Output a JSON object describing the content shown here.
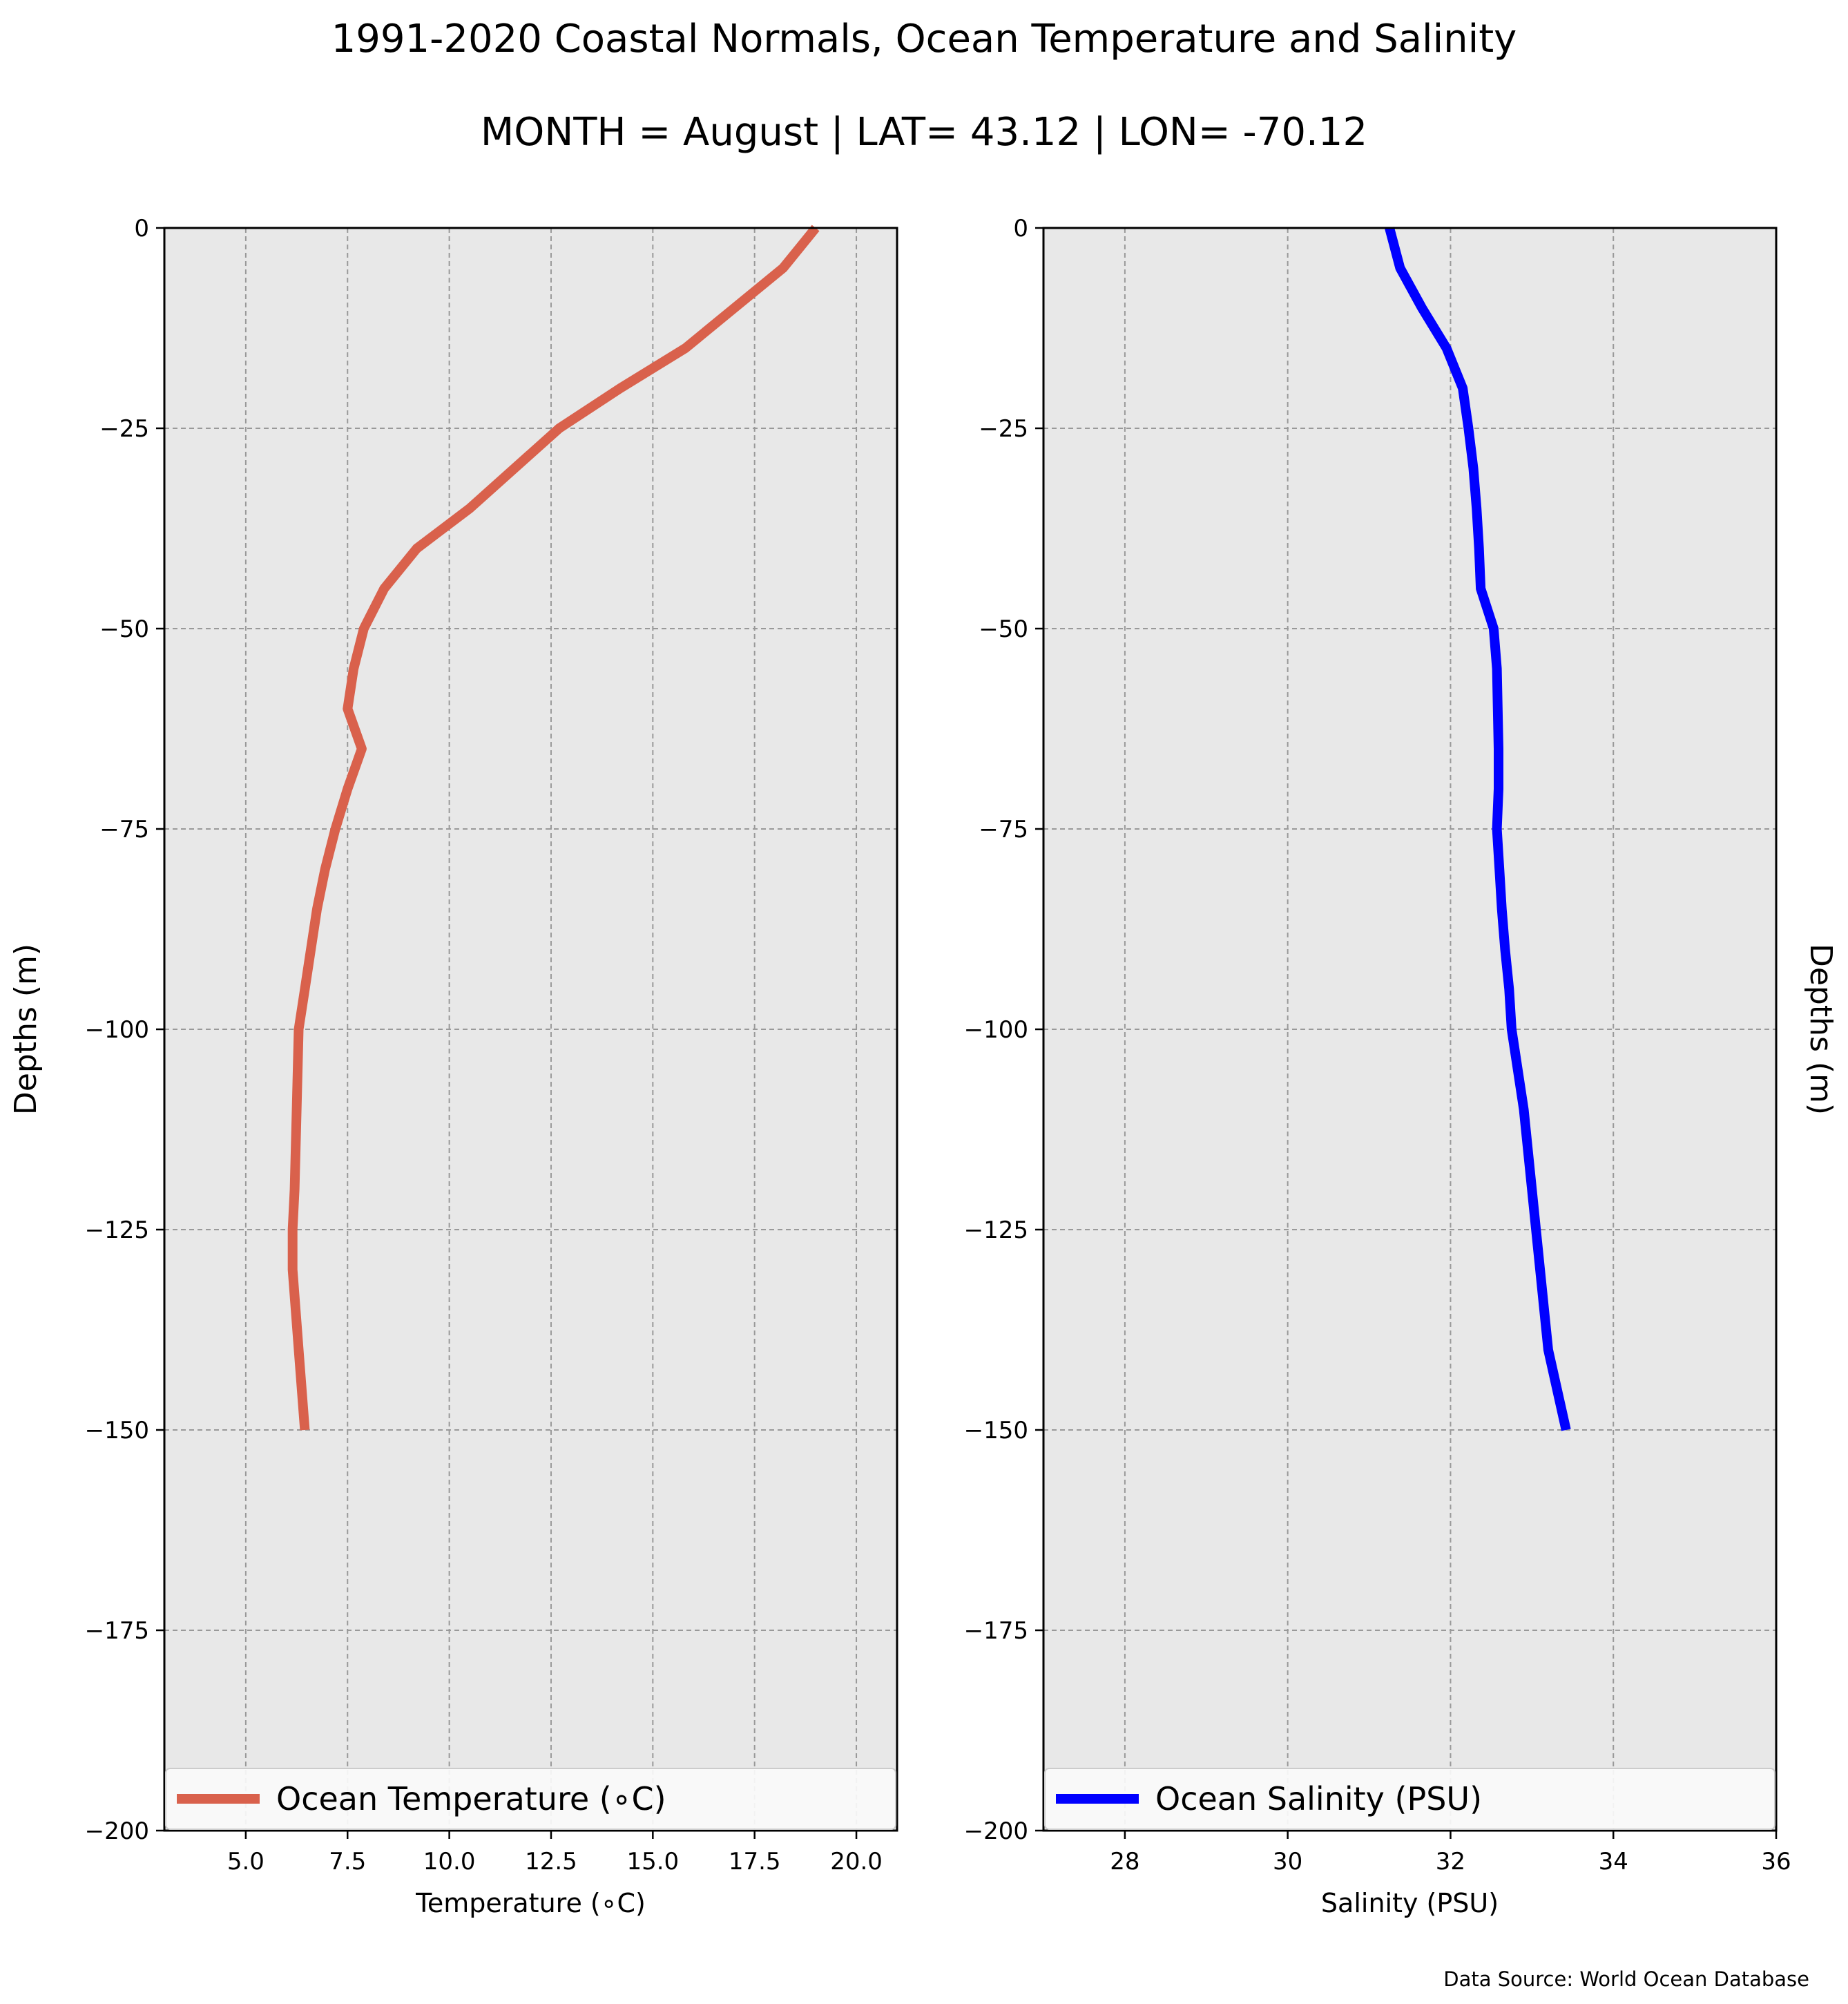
{
  "title": "1991-2020 Coastal Normals, Ocean Temperature and Salinity",
  "subtitle": "MONTH = August | LAT= 43.12 | LON= -70.12",
  "source": "Data Source: World Ocean Database",
  "colors": {
    "background": "#e8e8e8",
    "grid": "#999999",
    "temperature": "#d9614c",
    "salinity": "#0000ff"
  },
  "chart_data": [
    {
      "type": "line",
      "xlabel": "Temperature ($^\\circ$C)",
      "xlabel_display": "Temperature (∘C)",
      "ylabel": "Depths (m)",
      "xlim": [
        3,
        21
      ],
      "ylim": [
        -200,
        0
      ],
      "xticks": [
        5.0,
        7.5,
        10.0,
        12.5,
        15.0,
        17.5,
        20.0
      ],
      "xtick_labels": [
        "5.0",
        "7.5",
        "10.0",
        "12.5",
        "15.0",
        "17.5",
        "20.0"
      ],
      "yticks": [
        0,
        -25,
        -50,
        -75,
        -100,
        -125,
        -150,
        -175,
        -200
      ],
      "ytick_labels": [
        "0",
        "−25",
        "−50",
        "−75",
        "−100",
        "−125",
        "−150",
        "−175",
        "−200"
      ],
      "grid": true,
      "legend_position": "bottom",
      "series": [
        {
          "name": "Ocean Temperature (∘C)",
          "color": "#d9614c",
          "x": [
            19.0,
            18.2,
            17.0,
            15.8,
            14.2,
            12.7,
            11.6,
            10.5,
            9.2,
            8.4,
            7.9,
            7.65,
            7.5,
            7.85,
            7.5,
            7.2,
            6.95,
            6.75,
            6.6,
            6.45,
            6.3,
            6.25,
            6.2,
            6.15,
            6.15,
            6.3,
            6.45
          ],
          "y": [
            0,
            -5,
            -10,
            -15,
            -20,
            -25,
            -30,
            -35,
            -40,
            -45,
            -50,
            -55,
            -60,
            -65,
            -70,
            -75,
            -80,
            -85,
            -90,
            -95,
            -100,
            -110,
            -120,
            -125,
            -130,
            -140,
            -150
          ]
        }
      ]
    },
    {
      "type": "line",
      "xlabel": "Salinity (PSU)",
      "ylabel": "Depths (m)",
      "xlim": [
        27,
        36
      ],
      "ylim": [
        -200,
        0
      ],
      "xticks": [
        28,
        30,
        32,
        34,
        36
      ],
      "xtick_labels": [
        "28",
        "30",
        "32",
        "34",
        "36"
      ],
      "yticks": [
        0,
        -25,
        -50,
        -75,
        -100,
        -125,
        -150,
        -175,
        -200
      ],
      "ytick_labels": [
        "0",
        "−25",
        "−50",
        "−75",
        "−100",
        "−125",
        "−150",
        "−175",
        "−200"
      ],
      "grid": true,
      "legend_position": "bottom",
      "series": [
        {
          "name": "Ocean Salinity (PSU)",
          "color": "#0000ff",
          "x": [
            31.25,
            31.38,
            31.65,
            31.95,
            32.15,
            32.22,
            32.28,
            32.32,
            32.35,
            32.37,
            32.53,
            32.57,
            32.58,
            32.59,
            32.59,
            32.57,
            32.6,
            32.63,
            32.67,
            32.72,
            32.75,
            32.9,
            33.05,
            33.2,
            33.42
          ],
          "y": [
            0,
            -5,
            -10,
            -15,
            -20,
            -25,
            -30,
            -35,
            -40,
            -45,
            -50,
            -55,
            -60,
            -65,
            -70,
            -75,
            -80,
            -85,
            -90,
            -95,
            -100,
            -110,
            -125,
            -140,
            -150
          ]
        }
      ]
    }
  ]
}
